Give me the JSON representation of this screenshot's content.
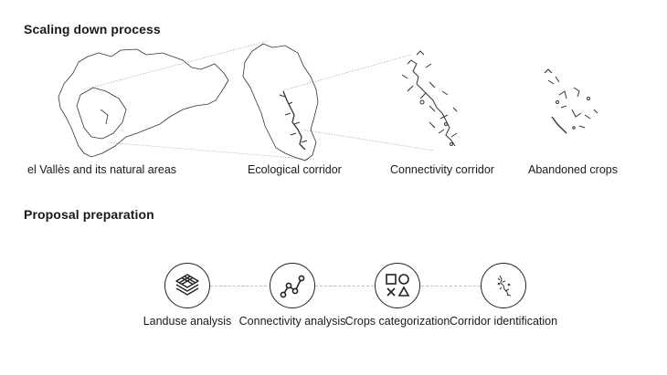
{
  "sections": {
    "scaling_title": "Scaling down process",
    "proposal_title": "Proposal preparation"
  },
  "maps": [
    {
      "label": "el Vallès and its natural areas"
    },
    {
      "label": "Ecological corridor"
    },
    {
      "label": "Connectivity corridor"
    },
    {
      "label": "Abandoned crops"
    }
  ],
  "steps": [
    {
      "label": "Landuse analysis",
      "icon": "layers-icon"
    },
    {
      "label": "Connectivity analysis",
      "icon": "network-icon"
    },
    {
      "label": "Crops categorization",
      "icon": "shapes-icon"
    },
    {
      "label": "Corridor identification",
      "icon": "corridor-icon"
    }
  ],
  "colors": {
    "stroke": "#222222",
    "guide": "#bbbbbb"
  }
}
